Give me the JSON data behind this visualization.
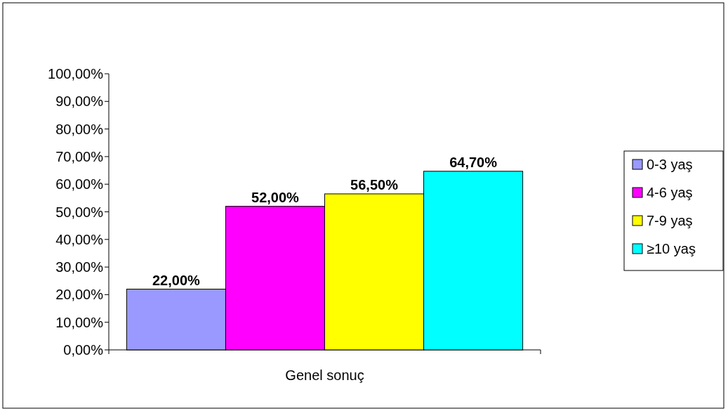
{
  "chart_data": {
    "type": "bar",
    "categories": [
      "Genel sonuç"
    ],
    "series": [
      {
        "name": "0-3 yaş",
        "color": "#9999ff",
        "values": [
          22
        ],
        "value_labels": [
          "22,00%"
        ]
      },
      {
        "name": "4-6 yaş",
        "color": "#ff00ff",
        "values": [
          52
        ],
        "value_labels": [
          "52,00%"
        ]
      },
      {
        "name": "7-9 yaş",
        "color": "#ffff00",
        "values": [
          56.5
        ],
        "value_labels": [
          "56,50%"
        ]
      },
      {
        "name": "≥10 yaş",
        "color": "#00ffff",
        "values": [
          64.7
        ],
        "value_labels": [
          "64,70%"
        ]
      }
    ],
    "ylim": [
      0,
      100
    ],
    "yticks": [
      {
        "value": 0,
        "label": "0,00%"
      },
      {
        "value": 10,
        "label": "10,00%"
      },
      {
        "value": 20,
        "label": "20,00%"
      },
      {
        "value": 30,
        "label": "30,00%"
      },
      {
        "value": 40,
        "label": "40,00%"
      },
      {
        "value": 50,
        "label": "50,00%"
      },
      {
        "value": 60,
        "label": "60,00%"
      },
      {
        "value": 70,
        "label": "70,00%"
      },
      {
        "value": 80,
        "label": "80,00%"
      },
      {
        "value": 90,
        "label": "90,00%"
      },
      {
        "value": 100,
        "label": "100,00%"
      }
    ],
    "grid": false,
    "legend": "right"
  }
}
